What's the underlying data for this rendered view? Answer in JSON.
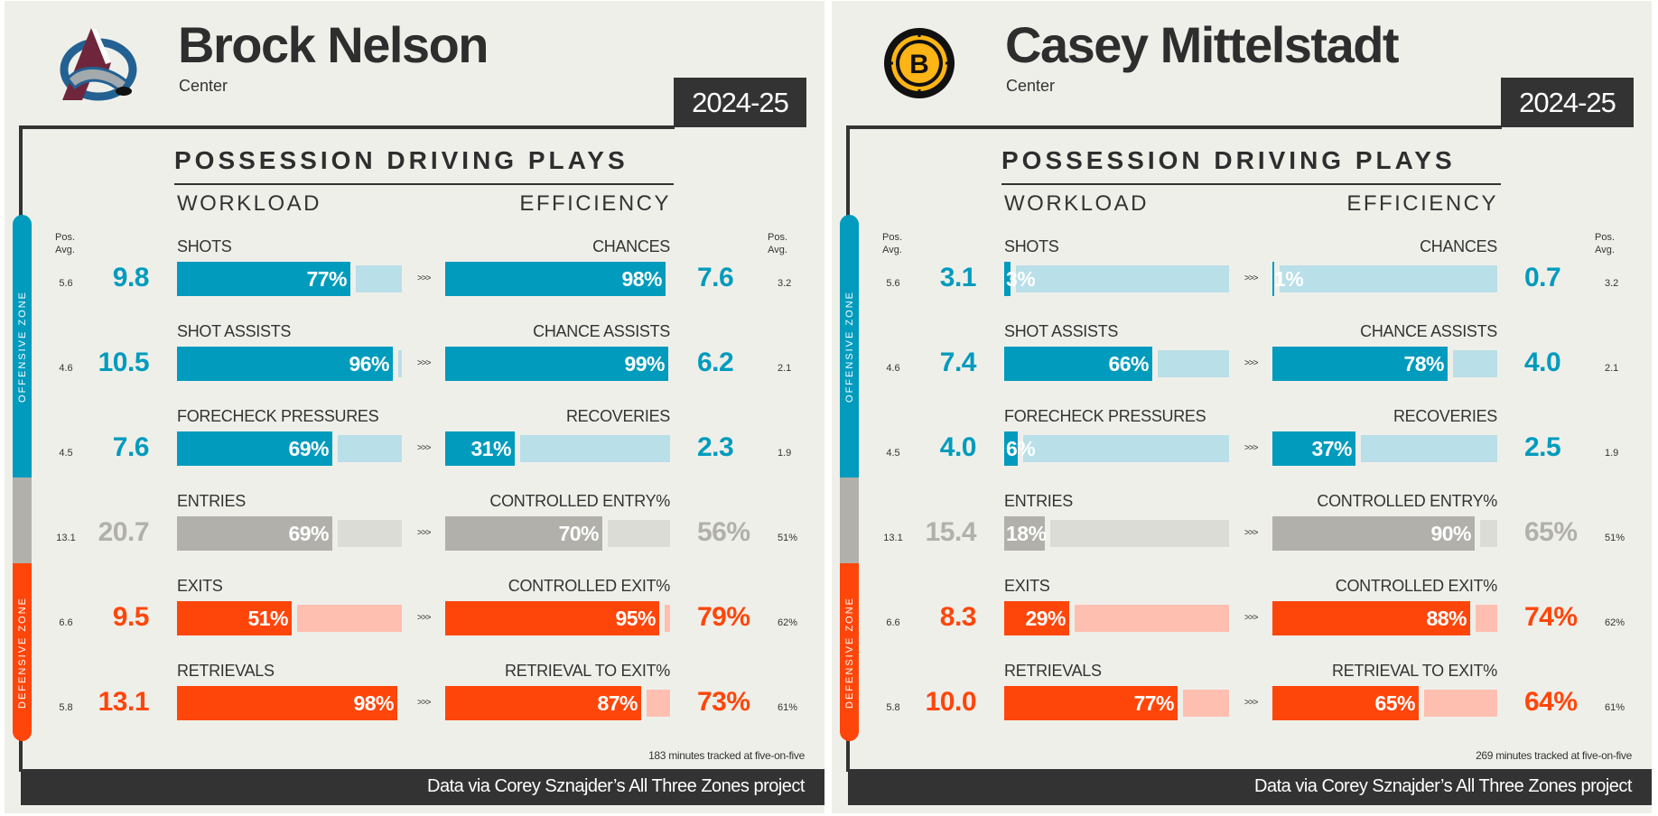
{
  "colors": {
    "background": "#efefea",
    "dark": "#333333",
    "offensive": "#009bbd",
    "offensive_light": "#b9dfe8",
    "neutral": "#b1b0aa",
    "neutral_light": "#dcdcd6",
    "defensive": "#ff460a",
    "defensive_light": "#ffbfb0"
  },
  "common": {
    "heading": "POSSESSION DRIVING PLAYS",
    "workload": "WORKLOAD",
    "efficiency": "EFFICIENCY",
    "pos_avg_line1": "Pos.",
    "pos_avg_line2": "Avg.",
    "arrow": ">>>",
    "offensive_zone": "OFFENSIVE ZONE",
    "defensive_zone": "DEFENSIVE ZONE",
    "footer": "Data via Corey Sznajder’s All Three Zones project"
  },
  "players": [
    {
      "name": "Brock Nelson",
      "position": "Center",
      "season": "2024-25",
      "team_logo": "avalanche-logo",
      "minutes": "183 minutes tracked at five-on-five",
      "rows": [
        {
          "zone": "offensive",
          "left_label": "SHOTS",
          "left_value": "9.8",
          "left_pct": 77,
          "left_pct_text": "77%",
          "left_avg": "5.6",
          "right_label": "CHANCES",
          "right_value": "7.6",
          "right_pct": 98,
          "right_pct_text": "98%",
          "right_avg": "3.2"
        },
        {
          "zone": "offensive",
          "left_label": "SHOT ASSISTS",
          "left_value": "10.5",
          "left_pct": 96,
          "left_pct_text": "96%",
          "left_avg": "4.6",
          "right_label": "CHANCE ASSISTS",
          "right_value": "6.2",
          "right_pct": 99,
          "right_pct_text": "99%",
          "right_avg": "2.1"
        },
        {
          "zone": "offensive",
          "left_label": "FORECHECK PRESSURES",
          "left_value": "7.6",
          "left_pct": 69,
          "left_pct_text": "69%",
          "left_avg": "4.5",
          "right_label": "RECOVERIES",
          "right_value": "2.3",
          "right_pct": 31,
          "right_pct_text": "31%",
          "right_avg": "1.9"
        },
        {
          "zone": "neutral",
          "left_label": "ENTRIES",
          "left_value": "20.7",
          "left_pct": 69,
          "left_pct_text": "69%",
          "left_avg": "13.1",
          "right_label": "CONTROLLED ENTRY%",
          "right_value": "56%",
          "right_pct": 70,
          "right_pct_text": "70%",
          "right_avg": "51%"
        },
        {
          "zone": "defensive",
          "left_label": "EXITS",
          "left_value": "9.5",
          "left_pct": 51,
          "left_pct_text": "51%",
          "left_avg": "6.6",
          "right_label": "CONTROLLED EXIT%",
          "right_value": "79%",
          "right_pct": 95,
          "right_pct_text": "95%",
          "right_avg": "62%"
        },
        {
          "zone": "defensive",
          "left_label": "RETRIEVALS",
          "left_value": "13.1",
          "left_pct": 98,
          "left_pct_text": "98%",
          "left_avg": "5.8",
          "right_label": "RETRIEVAL TO EXIT%",
          "right_value": "73%",
          "right_pct": 87,
          "right_pct_text": "87%",
          "right_avg": "61%"
        }
      ]
    },
    {
      "name": "Casey Mittelstadt",
      "position": "Center",
      "season": "2024-25",
      "team_logo": "bruins-logo",
      "minutes": "269 minutes tracked at five-on-five",
      "rows": [
        {
          "zone": "offensive",
          "left_label": "SHOTS",
          "left_value": "3.1",
          "left_pct": 3,
          "left_pct_text": "3%",
          "left_avg": "5.6",
          "right_label": "CHANCES",
          "right_value": "0.7",
          "right_pct": 1,
          "right_pct_text": "1%",
          "right_avg": "3.2"
        },
        {
          "zone": "offensive",
          "left_label": "SHOT ASSISTS",
          "left_value": "7.4",
          "left_pct": 66,
          "left_pct_text": "66%",
          "left_avg": "4.6",
          "right_label": "CHANCE ASSISTS",
          "right_value": "4.0",
          "right_pct": 78,
          "right_pct_text": "78%",
          "right_avg": "2.1"
        },
        {
          "zone": "offensive",
          "left_label": "FORECHECK PRESSURES",
          "left_value": "4.0",
          "left_pct": 6,
          "left_pct_text": "6%",
          "left_avg": "4.5",
          "right_label": "RECOVERIES",
          "right_value": "2.5",
          "right_pct": 37,
          "right_pct_text": "37%",
          "right_avg": "1.9"
        },
        {
          "zone": "neutral",
          "left_label": "ENTRIES",
          "left_value": "15.4",
          "left_pct": 18,
          "left_pct_text": "18%",
          "left_avg": "13.1",
          "right_label": "CONTROLLED ENTRY%",
          "right_value": "65%",
          "right_pct": 90,
          "right_pct_text": "90%",
          "right_avg": "51%"
        },
        {
          "zone": "defensive",
          "left_label": "EXITS",
          "left_value": "8.3",
          "left_pct": 29,
          "left_pct_text": "29%",
          "left_avg": "6.6",
          "right_label": "CONTROLLED EXIT%",
          "right_value": "74%",
          "right_pct": 88,
          "right_pct_text": "88%",
          "right_avg": "62%"
        },
        {
          "zone": "defensive",
          "left_label": "RETRIEVALS",
          "left_value": "10.0",
          "left_pct": 77,
          "left_pct_text": "77%",
          "left_avg": "5.8",
          "right_label": "RETRIEVAL TO EXIT%",
          "right_value": "64%",
          "right_pct": 65,
          "right_pct_text": "65%",
          "right_avg": "61%"
        }
      ]
    }
  ]
}
